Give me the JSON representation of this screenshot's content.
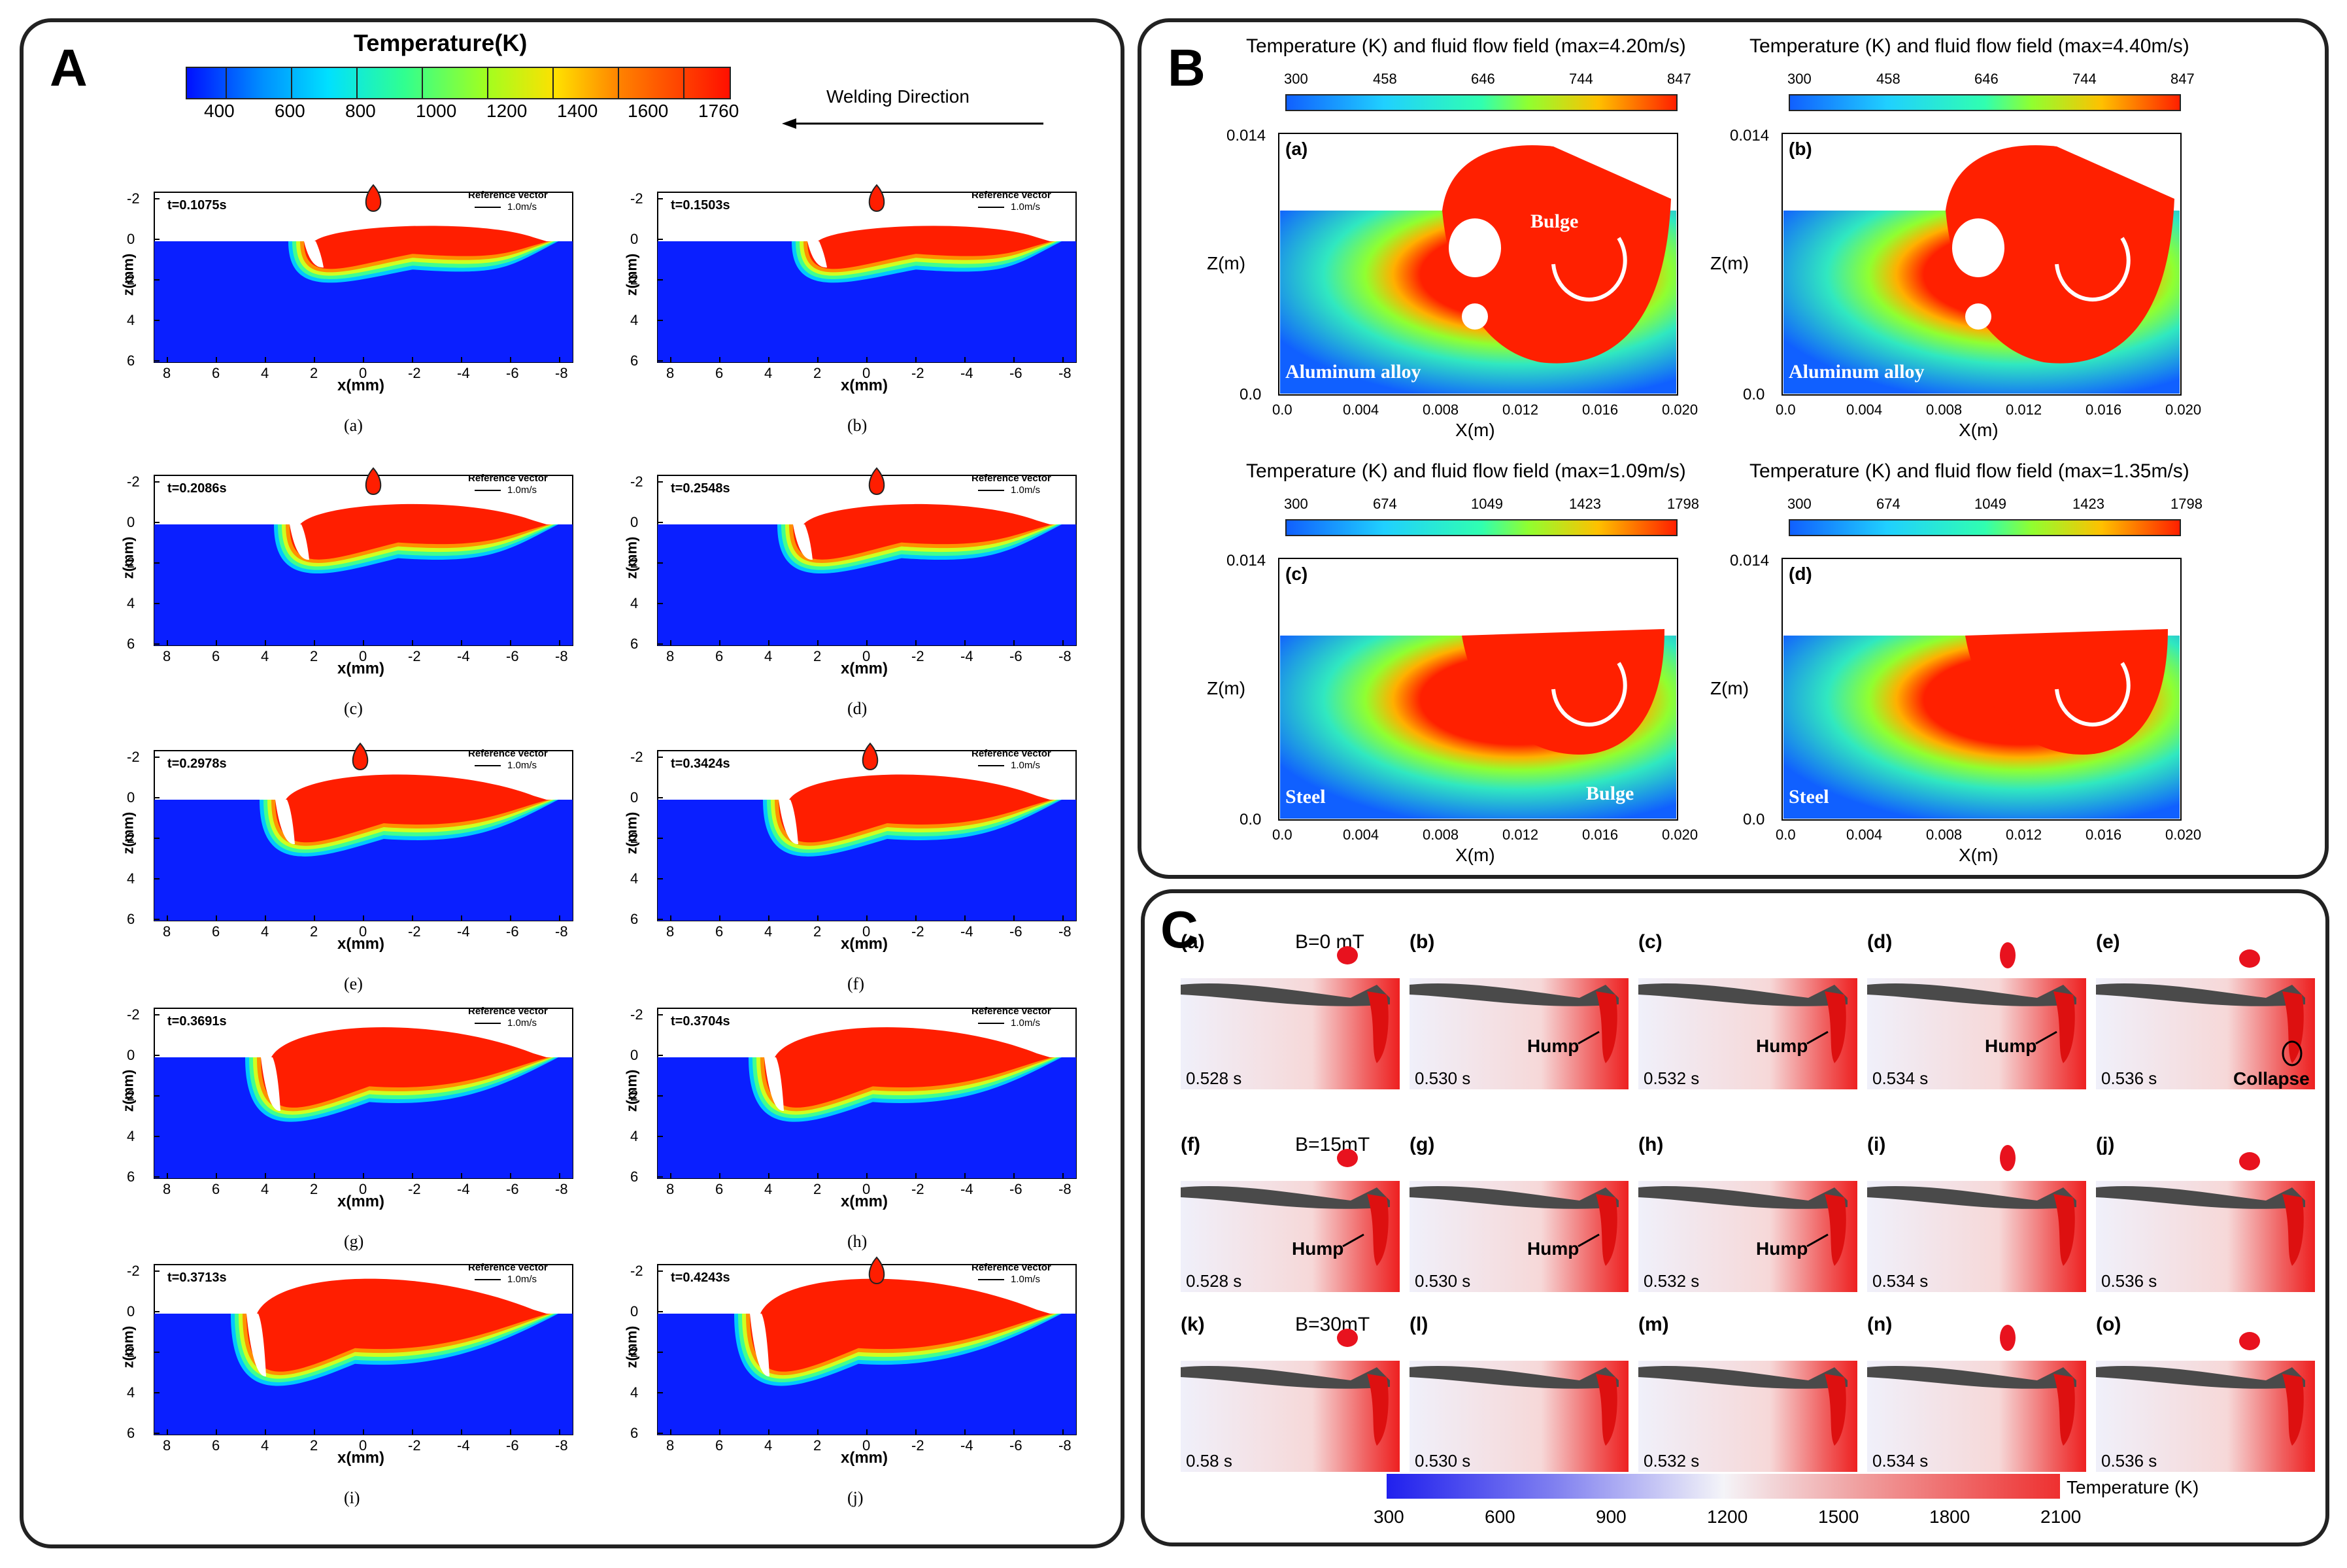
{
  "panelA": {
    "label": "A",
    "colorbar_title": "Temperature(K)",
    "colorbar_ticks": [
      "400",
      "600",
      "800",
      "1000",
      "1200",
      "1400",
      "1600",
      "1760"
    ],
    "welding_direction": "Welding Direction",
    "z_label": "z(mm)",
    "x_label": "x(mm)",
    "x_ticks": [
      "8",
      "6",
      "4",
      "2",
      "0",
      "-2",
      "-4",
      "-6",
      "-8"
    ],
    "z_ticks": [
      "-2",
      "0",
      "2",
      "4",
      "6"
    ],
    "ref_title": "Reference vector",
    "ref_value": "1.0m/s",
    "subplots": [
      {
        "time": "t=0.1075s",
        "caption": "(a)"
      },
      {
        "time": "t=0.1503s",
        "caption": "(b)"
      },
      {
        "time": "t=0.2086s",
        "caption": "(c)"
      },
      {
        "time": "t=0.2548s",
        "caption": "(d)"
      },
      {
        "time": "t=0.2978s",
        "caption": "(e)"
      },
      {
        "time": "t=0.3424s",
        "caption": "(f)"
      },
      {
        "time": "t=0.3691s",
        "caption": "(g)"
      },
      {
        "time": "t=0.3704s",
        "caption": "(h)"
      },
      {
        "time": "t=0.3713s",
        "caption": "(i)"
      },
      {
        "time": "t=0.4243s",
        "caption": "(j)"
      }
    ]
  },
  "panelB": {
    "label": "B",
    "x_label": "X(m)",
    "z_label": "Z(m)",
    "x_ticks": [
      "0.0",
      "0.004",
      "0.008",
      "0.012",
      "0.016",
      "0.020"
    ],
    "z_ticks": [
      "0.014",
      "0.0"
    ],
    "subplots": [
      {
        "title": "Temperature (K) and fluid flow field (max=4.20m/s)",
        "ticks": [
          "300",
          "458",
          "646",
          "744",
          "847"
        ],
        "tag": "(a)",
        "material": "Aluminum alloy",
        "annotation": "Bulge"
      },
      {
        "title": "Temperature (K) and fluid flow field (max=4.40m/s)",
        "ticks": [
          "300",
          "458",
          "646",
          "744",
          "847"
        ],
        "tag": "(b)",
        "material": "Aluminum alloy",
        "annotation": ""
      },
      {
        "title": "Temperature (K) and fluid flow field (max=1.09m/s)",
        "ticks": [
          "300",
          "674",
          "1049",
          "1423",
          "1798"
        ],
        "tag": "(c)",
        "material": "Steel",
        "annotation": "Bulge"
      },
      {
        "title": "Temperature (K) and fluid flow field (max=1.35m/s)",
        "ticks": [
          "300",
          "674",
          "1049",
          "1423",
          "1798"
        ],
        "tag": "(d)",
        "material": "Steel",
        "annotation": ""
      }
    ]
  },
  "panelC": {
    "label": "C",
    "rows": [
      {
        "field": "B=0 mT",
        "cells": [
          {
            "tag": "(a)",
            "time": "0.528 s",
            "note": ""
          },
          {
            "tag": "(b)",
            "time": "0.530 s",
            "note": "Hump"
          },
          {
            "tag": "(c)",
            "time": "0.532 s",
            "note": "Hump"
          },
          {
            "tag": "(d)",
            "time": "0.534 s",
            "note": "Hump"
          },
          {
            "tag": "(e)",
            "time": "0.536 s",
            "note": "Collapse"
          }
        ]
      },
      {
        "field": "B=15mT",
        "cells": [
          {
            "tag": "(f)",
            "time": "0.528 s",
            "note": "Hump"
          },
          {
            "tag": "(g)",
            "time": "0.530 s",
            "note": "Hump"
          },
          {
            "tag": "(h)",
            "time": "0.532 s",
            "note": "Hump"
          },
          {
            "tag": "(i)",
            "time": "0.534 s",
            "note": ""
          },
          {
            "tag": "(j)",
            "time": "0.536 s",
            "note": ""
          }
        ]
      },
      {
        "field": "B=30mT",
        "cells": [
          {
            "tag": "(k)",
            "time": "0.58 s",
            "note": ""
          },
          {
            "tag": "(l)",
            "time": "0.530 s",
            "note": ""
          },
          {
            "tag": "(m)",
            "time": "0.532 s",
            "note": ""
          },
          {
            "tag": "(n)",
            "time": "0.534 s",
            "note": ""
          },
          {
            "tag": "(o)",
            "time": "0.536 s",
            "note": ""
          }
        ]
      }
    ],
    "colorbar_title": "Temperature (K)",
    "colorbar_ticks": [
      "300",
      "600",
      "900",
      "1200",
      "1500",
      "1800",
      "2100"
    ]
  },
  "colors": {
    "jet_blue": "#0a1fff",
    "jet_red": "#ff1e00",
    "hot_red": "#e8121e",
    "frame": "#222222"
  }
}
